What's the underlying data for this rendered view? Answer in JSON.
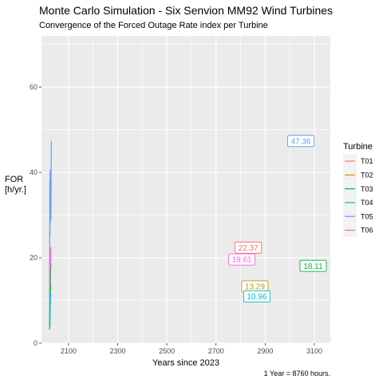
{
  "chart_data": {
    "type": "line",
    "title": "Monte Carlo Simulation - Six Senvion MM92 Wind Turbines",
    "subtitle": "Convergence of the Forced Outage Rate index per Turbine",
    "xlabel": "Years since 2023",
    "ylabel": [
      "FOR",
      "[h/yr.]"
    ],
    "caption": "1 Year = 8760 hours.",
    "xlim": [
      1990,
      3165
    ],
    "ylim": [
      0,
      72
    ],
    "x_ticks": [
      2100,
      2300,
      2500,
      2700,
      2900,
      3100
    ],
    "y_ticks": [
      0,
      20,
      40,
      60
    ],
    "grid": true,
    "legend": {
      "title": "Turbine",
      "placement": "right"
    },
    "series": [
      {
        "name": "T01",
        "color": "#F8766D",
        "x": [
          2023,
          2024,
          2024.5,
          2025,
          2025.5,
          2026,
          2026.5,
          2027,
          2028,
          2030
        ],
        "y": [
          8.5,
          14.0,
          9.0,
          13.5,
          10.0,
          22.0,
          18.5,
          21.0,
          22.4,
          22.37
        ],
        "label": {
          "text": "22.37",
          "x": 2831,
          "y": 22.37
        }
      },
      {
        "name": "T02",
        "color": "#B79F00",
        "x": [
          2023,
          2024,
          2024.5,
          2025,
          2026,
          2027,
          2028,
          2030
        ],
        "y": [
          6.5,
          12.5,
          9.5,
          14.0,
          11.5,
          13.0,
          13.4,
          13.29
        ],
        "label": {
          "text": "13.29",
          "x": 2858,
          "y": 13.29
        }
      },
      {
        "name": "T03",
        "color": "#00BA38",
        "x": [
          2023,
          2024,
          2024.5,
          2025,
          2026,
          2027,
          2028,
          2030
        ],
        "y": [
          3.2,
          7.5,
          4.0,
          10.0,
          14.0,
          17.0,
          18.3,
          18.11
        ],
        "label": {
          "text": "18.11",
          "x": 3095,
          "y": 18.11
        }
      },
      {
        "name": "T04",
        "color": "#00BFC4",
        "x": [
          2023,
          2024,
          2024.5,
          2025,
          2026,
          2027,
          2028,
          2030
        ],
        "y": [
          4.5,
          9.0,
          6.0,
          10.5,
          9.0,
          11.5,
          11.1,
          10.96
        ],
        "label": {
          "text": "10.96",
          "x": 2866,
          "y": 10.96
        }
      },
      {
        "name": "T05",
        "color": "#619CFF",
        "x": [
          2023,
          2024,
          2024.5,
          2025,
          2025.5,
          2026,
          2026.5,
          2027,
          2028,
          2030
        ],
        "y": [
          10.0,
          38.0,
          25.0,
          40.5,
          28.0,
          32.0,
          30.0,
          31.5,
          29.0,
          47.36
        ],
        "label": {
          "text": "47.36",
          "x": 3045,
          "y": 47.36
        }
      },
      {
        "name": "T06",
        "color": "#F564E3",
        "x": [
          2023,
          2024,
          2024.5,
          2025,
          2026,
          2027,
          2028,
          2030
        ],
        "y": [
          13.0,
          21.5,
          15.0,
          20.0,
          18.0,
          20.5,
          19.5,
          19.61
        ],
        "label": {
          "text": "19.61",
          "x": 2805,
          "y": 19.61
        }
      }
    ]
  }
}
